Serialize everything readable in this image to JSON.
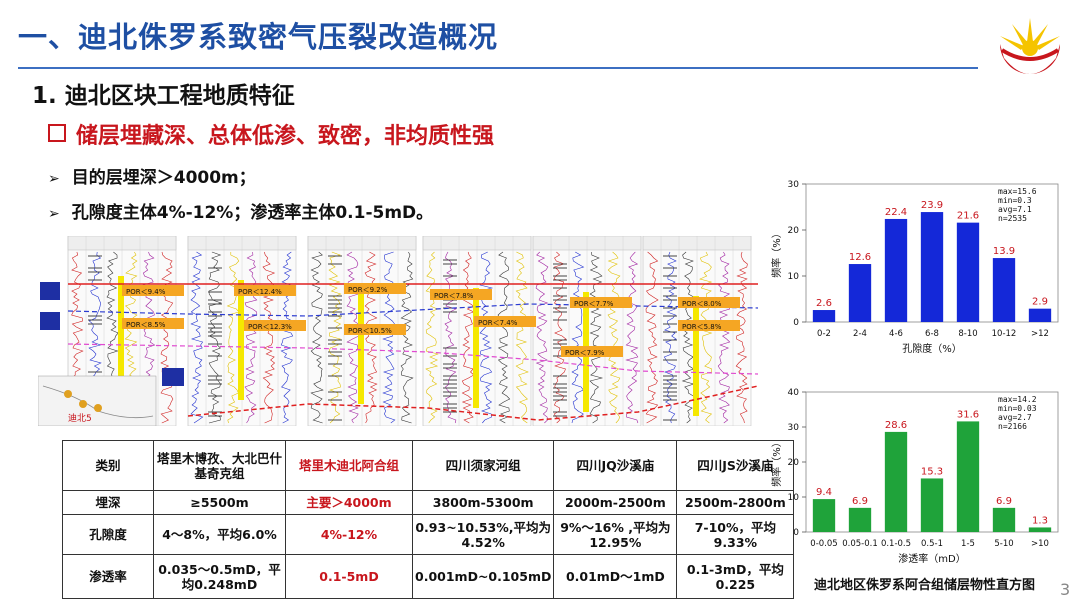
{
  "header": {
    "title": "一、迪北侏罗系致密气压裂改造概况",
    "subtitle": "1. 迪北区块工程地质特征",
    "heading": "储层埋藏深、总体低渗、致密，非均质性强",
    "bullets": [
      "目的层埋深＞4000m；",
      "孔隙度主体4%-12%；渗透率主体0.1-5mD。"
    ]
  },
  "logo": {
    "name": "cnpc-logo-icon",
    "color_red": "#c8161d",
    "color_yellow": "#f5c400"
  },
  "well_section": {
    "labels": [
      "POR＜9.4%",
      "POR＜12.4%",
      "POR＜9.2%",
      "POR＜7.8%",
      "POR＜8.0%",
      "POR＜8.5%",
      "POR＜12.3%",
      "POR＜10.5%",
      "POR＜7.4%",
      "POR＜7.7%",
      "POR＜5.8%",
      "POR＜7.9%"
    ],
    "map_label": "迪北5"
  },
  "table": {
    "header": [
      "类别",
      "塔里木博孜、大北巴什基奇克组",
      "塔里木迪北阿合组",
      "四川须家河组",
      "四川JQ沙溪庙",
      "四川JS沙溪庙"
    ],
    "rows": [
      [
        "埋深",
        "≥5500m",
        "主要＞4000m",
        "3800m-5300m",
        "2000m-2500m",
        "2500m-2800m"
      ],
      [
        "孔隙度",
        "4～8%，平均6.0%",
        "4%-12%",
        "0.93~10.53%,平均为4.52%",
        "9%～16% ,平均为12.95%",
        "7-10%，平均9.33%"
      ],
      [
        "渗透率",
        "0.035～0.5mD，平均0.248mD",
        "0.1-5mD",
        "0.001mD~0.105mD",
        "0.01mD～1mD",
        "0.1-3mD，平均0.225"
      ]
    ]
  },
  "chart_data": [
    {
      "type": "bar",
      "categories": [
        "0-2",
        "2-4",
        "4-6",
        "6-8",
        "8-10",
        "10-12",
        ">12"
      ],
      "values": [
        2.6,
        12.6,
        22.4,
        23.9,
        21.6,
        13.9,
        2.9
      ],
      "xlabel": "孔隙度（%）",
      "ylabel": "频率（%）",
      "ylim": [
        0,
        30
      ],
      "yticks": [
        0,
        10,
        20,
        30
      ],
      "stats": [
        "max=15.6",
        "min=0.3",
        "avg=7.1",
        "n=2535"
      ],
      "bar_color": "#1428d8",
      "label_color": "#c8161d",
      "grid": false
    },
    {
      "type": "bar",
      "categories": [
        "0-0.05",
        "0.05-0.1",
        "0.1-0.5",
        "0.5-1",
        "1-5",
        "5-10",
        ">10"
      ],
      "values": [
        9.4,
        6.9,
        28.6,
        15.3,
        31.6,
        6.9,
        1.3
      ],
      "xlabel": "渗透率（mD）",
      "ylabel": "频率（%）",
      "ylim": [
        0,
        40
      ],
      "yticks": [
        0,
        10,
        20,
        30,
        40
      ],
      "stats": [
        "max=14.2",
        "min=0.03",
        "avg=2.7",
        "n=2166"
      ],
      "bar_color": "#1fa33a",
      "label_color": "#c8161d",
      "grid": false
    }
  ],
  "caption": "迪北地区侏罗系阿合组储层物性直方图",
  "page_number": "3"
}
